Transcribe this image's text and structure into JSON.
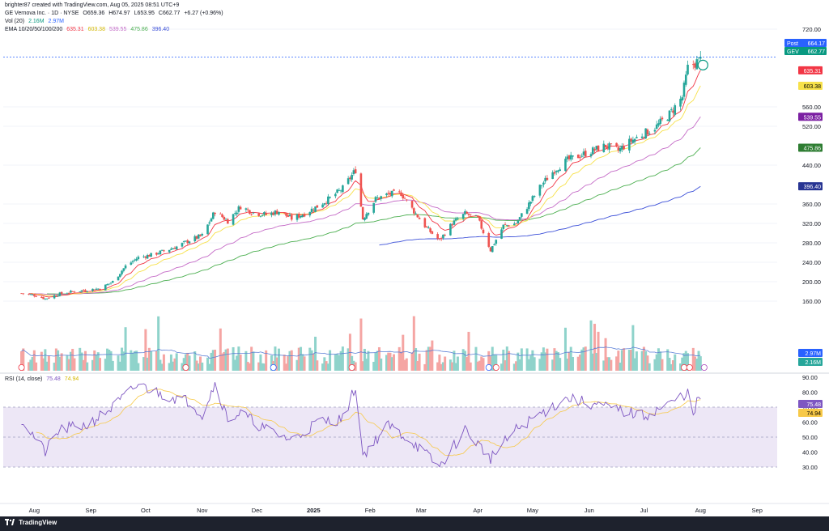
{
  "header": {
    "attribution": "brighter87 created with TradingView.com, Aug 05, 2025 08:51 UTC+9",
    "symbol_line": "GE Vernova Inc. · 1D · NYSE",
    "ohlc": {
      "O": "O659.36",
      "H": "H674.97",
      "L": "L653.95",
      "C": "C662.77",
      "change": "+6.27 (+0.96%)"
    },
    "vol_label": "Vol (20)",
    "vol_values": [
      "2.16M",
      "2.97M"
    ],
    "ema_label": "EMA 10/20/50/100/200",
    "ema_values": [
      "635.31",
      "603.38",
      "539.55",
      "475.86",
      "396.40"
    ],
    "rsi_label": "RSI (14, close)",
    "rsi_values": [
      "75.48",
      "74.94"
    ]
  },
  "badges": {
    "post_label": "Post",
    "post_value": "664.17",
    "gev_label": "GEV",
    "gev_value": "662.77",
    "vol_badge_1": "2.97M",
    "vol_badge_2": "2.16M",
    "rsi_badge_1": "75.48",
    "rsi_badge_2": "74.94"
  },
  "colors": {
    "up": "#26a69a",
    "down": "#ef5350",
    "ema10": "#f23645",
    "ema20": "#f7e14a",
    "ema50": "#c56cc7",
    "ema100": "#4caf50",
    "ema200": "#3b4fd8",
    "rsi": "#7e57c2",
    "rsi_ma": "#f7c948",
    "rsi_band": "#ede7f6",
    "post_badge": "#2962ff",
    "gev_badge": "#089981"
  },
  "footer": {
    "brand": "TradingView"
  },
  "chart_data": [
    {
      "type": "candlestick",
      "title": "GE Vernova Inc. · 1D · NYSE",
      "y_ticks": [
        "720.00",
        "560.00",
        "520.00",
        "440.00",
        "360.00",
        "320.00",
        "280.00",
        "240.00",
        "200.00",
        "160.00"
      ],
      "ylim": [
        120,
        740
      ],
      "x_labels": [
        "Aug",
        "Sep",
        "Oct",
        "Nov",
        "Dec",
        "2025",
        "Feb",
        "Mar",
        "Apr",
        "May",
        "Jun",
        "Jul",
        "Aug",
        "Sep"
      ],
      "close_path": [
        [
          "2024-07-25",
          176
        ],
        [
          "2024-08-01",
          172
        ],
        [
          "2024-08-07",
          165
        ],
        [
          "2024-08-15",
          175
        ],
        [
          "2024-08-23",
          180
        ],
        [
          "2024-08-30",
          183
        ],
        [
          "2024-09-06",
          186
        ],
        [
          "2024-09-13",
          200
        ],
        [
          "2024-09-20",
          232
        ],
        [
          "2024-09-27",
          250
        ],
        [
          "2024-10-04",
          255
        ],
        [
          "2024-10-11",
          263
        ],
        [
          "2024-10-18",
          272
        ],
        [
          "2024-10-25",
          285
        ],
        [
          "2024-11-01",
          295
        ],
        [
          "2024-11-08",
          345
        ],
        [
          "2024-11-15",
          325
        ],
        [
          "2024-11-22",
          355
        ],
        [
          "2024-11-29",
          342
        ],
        [
          "2024-12-06",
          338
        ],
        [
          "2024-12-13",
          345
        ],
        [
          "2024-12-20",
          330
        ],
        [
          "2024-12-27",
          340
        ],
        [
          "2025-01-03",
          355
        ],
        [
          "2025-01-10",
          372
        ],
        [
          "2025-01-17",
          392
        ],
        [
          "2025-01-24",
          430
        ],
        [
          "2025-01-28",
          330
        ],
        [
          "2025-02-04",
          370
        ],
        [
          "2025-02-11",
          380
        ],
        [
          "2025-02-18",
          382
        ],
        [
          "2025-02-25",
          345
        ],
        [
          "2025-03-04",
          310
        ],
        [
          "2025-03-11",
          285
        ],
        [
          "2025-03-18",
          320
        ],
        [
          "2025-03-25",
          340
        ],
        [
          "2025-04-01",
          330
        ],
        [
          "2025-04-08",
          265
        ],
        [
          "2025-04-15",
          315
        ],
        [
          "2025-04-22",
          320
        ],
        [
          "2025-04-29",
          360
        ],
        [
          "2025-05-06",
          400
        ],
        [
          "2025-05-13",
          430
        ],
        [
          "2025-05-20",
          450
        ],
        [
          "2025-05-27",
          460
        ],
        [
          "2025-06-03",
          470
        ],
        [
          "2025-06-10",
          480
        ],
        [
          "2025-06-17",
          470
        ],
        [
          "2025-06-24",
          490
        ],
        [
          "2025-07-01",
          505
        ],
        [
          "2025-07-08",
          520
        ],
        [
          "2025-07-15",
          545
        ],
        [
          "2025-07-22",
          580
        ],
        [
          "2025-07-25",
          640
        ],
        [
          "2025-07-31",
          655
        ],
        [
          "2025-08-01",
          662.77
        ]
      ],
      "last": {
        "open": 659.36,
        "high": 674.97,
        "low": 653.95,
        "close": 662.77,
        "post": 664.17
      },
      "ema_last": {
        "ema10": 635.31,
        "ema20": 603.38,
        "ema50": 539.55,
        "ema100": 475.86,
        "ema200": 396.4
      },
      "volume_last": {
        "vol": "2.16M",
        "vol_ma": "2.97M"
      }
    },
    {
      "type": "line",
      "title": "RSI (14, close)",
      "y_ticks": [
        "90.00",
        "80.00",
        "70.00",
        "60.00",
        "50.00",
        "40.00",
        "30.00"
      ],
      "ylim": [
        25,
        92
      ],
      "bands": [
        30,
        70
      ],
      "midline": 50,
      "x_labels": [
        "Aug",
        "Sep",
        "Oct",
        "Nov",
        "Dec",
        "2025",
        "Feb",
        "Mar",
        "Apr",
        "May",
        "Jun",
        "Jul",
        "Aug",
        "Sep"
      ],
      "rsi_path": [
        [
          "2024-07-25",
          62
        ],
        [
          "2024-08-07",
          40
        ],
        [
          "2024-08-15",
          55
        ],
        [
          "2024-08-30",
          58
        ],
        [
          "2024-09-13",
          70
        ],
        [
          "2024-09-27",
          85
        ],
        [
          "2024-10-11",
          78
        ],
        [
          "2024-10-25",
          74
        ],
        [
          "2024-11-01",
          65
        ],
        [
          "2024-11-08",
          86
        ],
        [
          "2024-11-15",
          62
        ],
        [
          "2024-11-22",
          66
        ],
        [
          "2024-12-06",
          55
        ],
        [
          "2024-12-20",
          48
        ],
        [
          "2025-01-03",
          60
        ],
        [
          "2025-01-17",
          62
        ],
        [
          "2025-01-24",
          84
        ],
        [
          "2025-01-28",
          38
        ],
        [
          "2025-02-11",
          58
        ],
        [
          "2025-02-25",
          46
        ],
        [
          "2025-03-11",
          30
        ],
        [
          "2025-03-25",
          55
        ],
        [
          "2025-04-08",
          36
        ],
        [
          "2025-04-22",
          55
        ],
        [
          "2025-05-06",
          66
        ],
        [
          "2025-05-20",
          76
        ],
        [
          "2025-06-03",
          72
        ],
        [
          "2025-06-17",
          68
        ],
        [
          "2025-07-01",
          64
        ],
        [
          "2025-07-15",
          72
        ],
        [
          "2025-07-25",
          80
        ],
        [
          "2025-07-28",
          62
        ],
        [
          "2025-07-31",
          78
        ],
        [
          "2025-08-01",
          75.48
        ]
      ],
      "rsi_ma_last": 74.94
    }
  ]
}
